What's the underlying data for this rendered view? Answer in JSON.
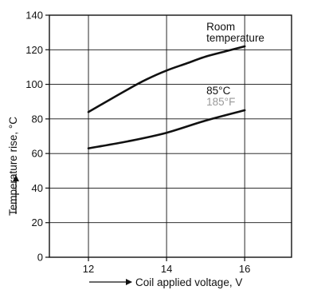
{
  "chart_data": {
    "type": "line",
    "xlabel": "Coil applied voltage, V",
    "ylabel": "Temperature rise, °C",
    "xlim": [
      11,
      17.2
    ],
    "ylim": [
      0,
      140
    ],
    "x_ticks": [
      12,
      14,
      16
    ],
    "y_ticks": [
      0,
      20,
      40,
      60,
      80,
      100,
      120,
      140
    ],
    "x_tick_labels": [
      "12",
      "14",
      "16"
    ],
    "y_tick_labels": [
      "0",
      "20",
      "40",
      "60",
      "80",
      "100",
      "120",
      "140"
    ],
    "grid": true,
    "series": [
      {
        "labels": [
          "Room",
          "temperature"
        ],
        "color": "#111111",
        "x": [
          12,
          13,
          13.5,
          14,
          14.5,
          15,
          15.5,
          16
        ],
        "y": [
          84,
          97,
          103,
          108,
          112,
          116,
          119,
          122
        ]
      },
      {
        "labels": [
          "85°C",
          "185°F"
        ],
        "label_colors": [
          "#111111",
          "#9a9a9a"
        ],
        "color": "#111111",
        "x": [
          12,
          13,
          14,
          15,
          16
        ],
        "y": [
          63,
          67,
          72,
          79,
          85
        ]
      }
    ]
  }
}
